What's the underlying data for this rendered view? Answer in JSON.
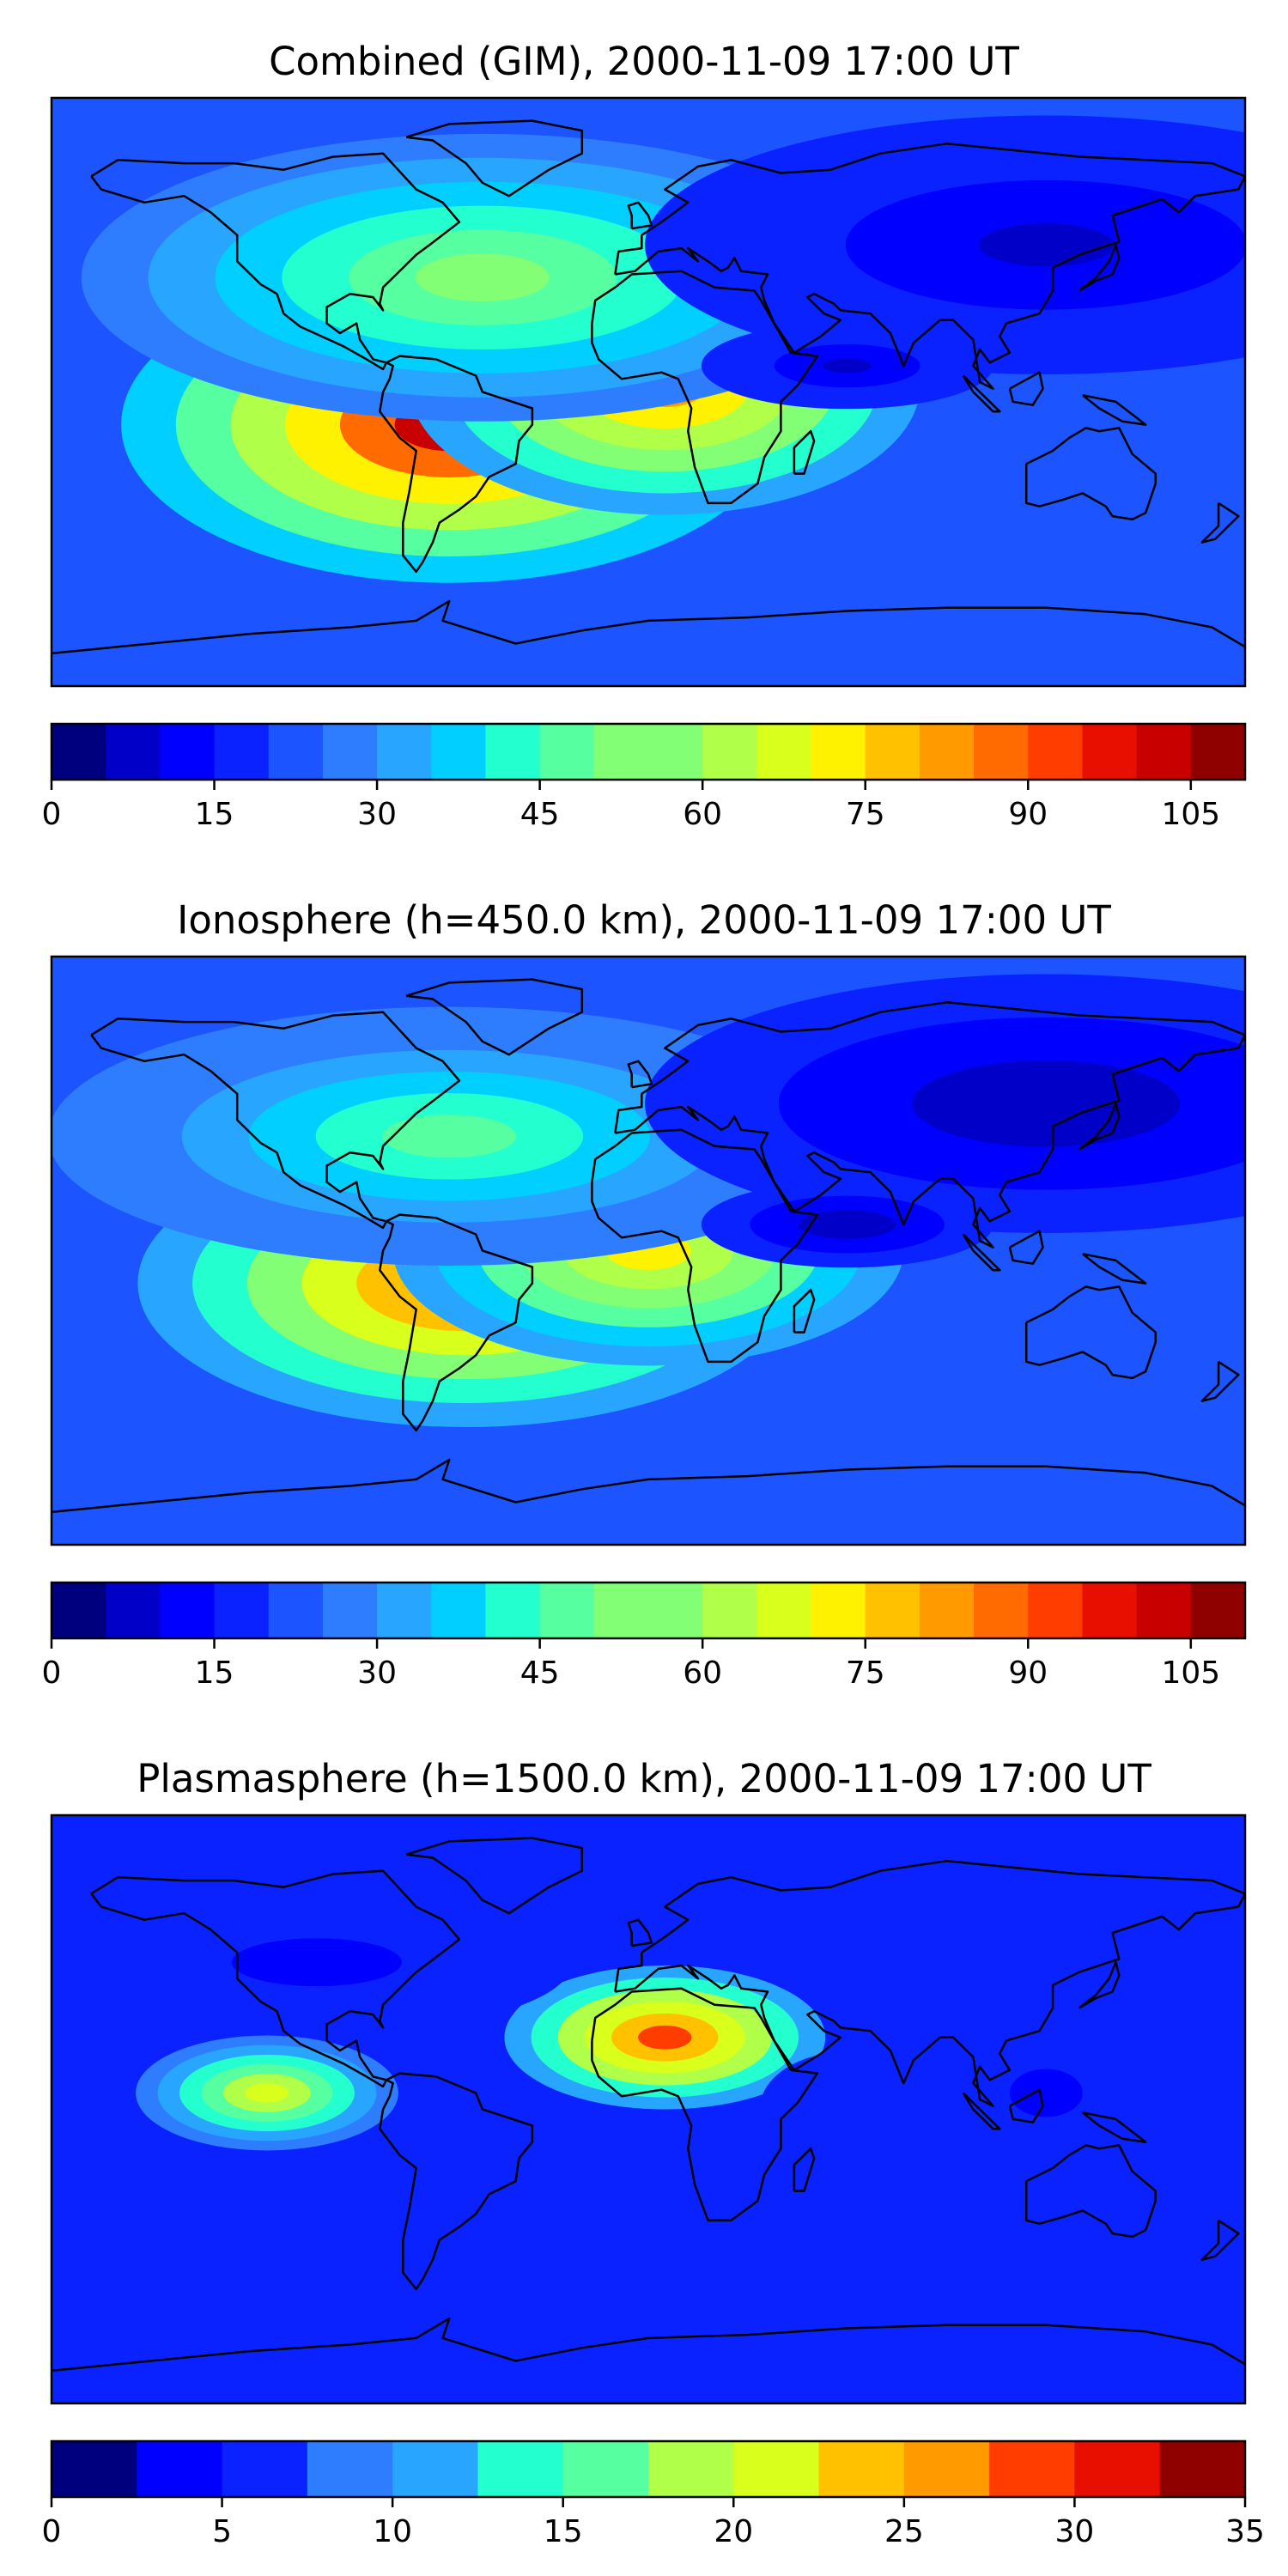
{
  "panels": [
    {
      "title": "Combined (GIM), 2000-11-09 17:00 UT",
      "colorbar": {
        "vmin": 0,
        "vmax": 110,
        "step": 5,
        "ticks": [
          "0",
          "15",
          "30",
          "45",
          "60",
          "75",
          "90",
          "105"
        ]
      },
      "features": [
        {
          "lon": -60,
          "lat": -10,
          "value": 100,
          "spread_lon": 45,
          "spread_lat": 22
        },
        {
          "lon": 5,
          "lat": 2,
          "value": 80,
          "spread_lon": 35,
          "spread_lat": 18
        },
        {
          "lon": -50,
          "lat": 35,
          "value": 50,
          "spread_lon": 55,
          "spread_lat": 20
        },
        {
          "lon": 120,
          "lat": 45,
          "value": 8,
          "spread_lon": 55,
          "spread_lat": 18
        },
        {
          "lon": 60,
          "lat": 8,
          "value": 8,
          "spread_lon": 20,
          "spread_lat": 6
        }
      ]
    },
    {
      "title": "Ionosphere  (h=450.0 km), 2000-11-09 17:00 UT",
      "colorbar": {
        "vmin": 0,
        "vmax": 110,
        "step": 5,
        "ticks": [
          "0",
          "15",
          "30",
          "45",
          "60",
          "75",
          "90",
          "105"
        ]
      },
      "features": [
        {
          "lon": -55,
          "lat": -10,
          "value": 90,
          "spread_lon": 45,
          "spread_lat": 20
        },
        {
          "lon": 0,
          "lat": 0,
          "value": 70,
          "spread_lon": 35,
          "spread_lat": 16
        },
        {
          "lon": -60,
          "lat": 35,
          "value": 45,
          "spread_lon": 55,
          "spread_lat": 18
        },
        {
          "lon": 120,
          "lat": 45,
          "value": 6,
          "spread_lon": 55,
          "spread_lat": 18
        },
        {
          "lon": 60,
          "lat": 8,
          "value": 6,
          "spread_lon": 20,
          "spread_lat": 6
        }
      ]
    },
    {
      "title": "Plasmasphere (h=1500.0 km), 2000-11-09 17:00 UT",
      "colorbar": {
        "vmin": 0,
        "vmax": 35,
        "step": 2.5,
        "ticks": [
          "0",
          "5",
          "10",
          "15",
          "20",
          "25",
          "30",
          "35"
        ]
      },
      "features": [
        {
          "lon": 5,
          "lat": 22,
          "value": 28,
          "spread_lon": 22,
          "spread_lat": 10
        },
        {
          "lon": -115,
          "lat": 5,
          "value": 20,
          "spread_lon": 18,
          "spread_lat": 8
        },
        {
          "lon": -100,
          "lat": 45,
          "value": 4,
          "spread_lon": 35,
          "spread_lat": 10
        },
        {
          "lon": 120,
          "lat": 5,
          "value": 4,
          "spread_lon": 15,
          "spread_lat": 10
        },
        {
          "lon": 60,
          "lat": 0,
          "value": 7,
          "spread_lon": 12,
          "spread_lat": 8
        }
      ]
    }
  ],
  "colormap": [
    "#00007f",
    "#0000c8",
    "#0000ff",
    "#0a22ff",
    "#1c54ff",
    "#2f7dff",
    "#28a5ff",
    "#00cfff",
    "#24ffd0",
    "#56ffa0",
    "#82ff74",
    "#b0ff48",
    "#d9ff1c",
    "#fff200",
    "#ffc100",
    "#ff9a00",
    "#ff6b00",
    "#ff3d00",
    "#e80f00",
    "#c80000",
    "#8f0000"
  ],
  "coastline_color": "#000000"
}
